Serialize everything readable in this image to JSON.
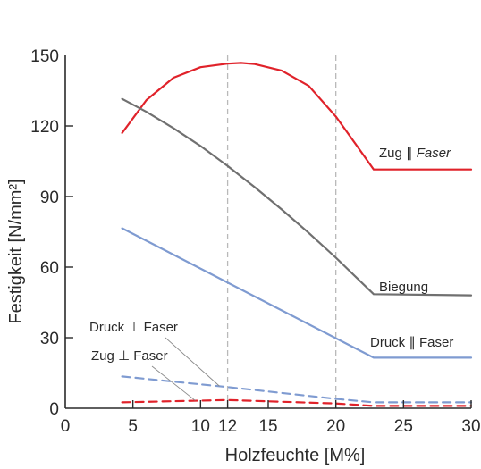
{
  "chart_data": {
    "type": "line",
    "xlabel": "Holzfeuchte [M%]",
    "ylabel": "Festigkeit [N/mm²]",
    "xlim": [
      0,
      30
    ],
    "ylim": [
      0,
      150
    ],
    "x_ticks": [
      0,
      5,
      10,
      12,
      15,
      20,
      25,
      30
    ],
    "y_ticks": [
      0,
      30,
      60,
      90,
      120,
      150
    ],
    "reference_lines_x": [
      12,
      20
    ],
    "grid": false,
    "series": [
      {
        "name": "Zug ∥ Faser",
        "label_main": "Zug ∥ ",
        "label_italic": "Faser",
        "color": "#e0222a",
        "dash": "solid",
        "x": [
          4.2,
          6,
          8,
          10,
          12,
          13,
          14,
          16,
          18,
          20,
          21.5,
          22.8,
          30
        ],
        "y": [
          117,
          131,
          140.5,
          145,
          146.5,
          146.8,
          146.3,
          143.5,
          137,
          124,
          112,
          101.5,
          101.5
        ]
      },
      {
        "name": "Biegung",
        "label_main": "Biegung",
        "label_italic": "",
        "color": "#707070",
        "dash": "solid",
        "x": [
          4.2,
          6,
          8,
          10,
          12,
          14,
          16,
          18,
          20,
          22.8,
          30
        ],
        "y": [
          131.5,
          126,
          119,
          111.5,
          103,
          94,
          84.5,
          74.5,
          64,
          48.5,
          48
        ]
      },
      {
        "name": "Druck ∥ Faser",
        "label_main": "Druck ∥ Faser",
        "label_italic": "",
        "color": "#7f9bd1",
        "dash": "solid",
        "x": [
          4.2,
          22.8,
          30
        ],
        "y": [
          76.5,
          21.5,
          21.5
        ]
      },
      {
        "name": "Druck ⊥ Faser",
        "label_main": "Druck ⊥ Faser",
        "label_italic": "",
        "color": "#7f9bd1",
        "dash": "dashed",
        "x": [
          4.2,
          12,
          20,
          22.8,
          30
        ],
        "y": [
          13.5,
          9,
          4,
          2.5,
          2.5
        ]
      },
      {
        "name": "Zug ⊥ Faser",
        "label_main": "Zug ⊥ Faser",
        "label_italic": "",
        "color": "#e0222a",
        "dash": "dashed",
        "x": [
          4.2,
          12,
          20,
          22.8,
          30
        ],
        "y": [
          2.5,
          3.5,
          2,
          1,
          1
        ]
      }
    ]
  }
}
